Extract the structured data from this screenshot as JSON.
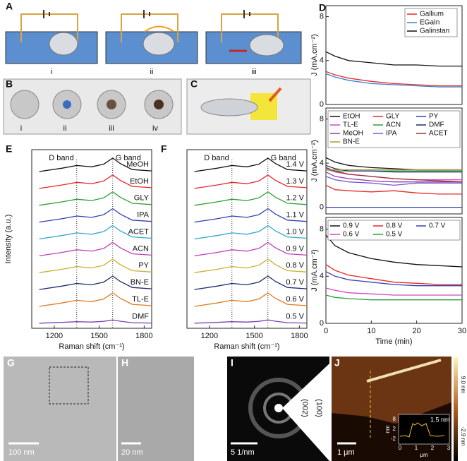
{
  "chart_data": [
    {
      "type": "line",
      "panel": "D",
      "ylabel": "J (mA.cm⁻²)",
      "xlim": [
        0,
        30
      ],
      "ylim": [
        0,
        9
      ],
      "yticks": [
        0,
        4,
        8
      ],
      "x": [
        0,
        2,
        5,
        10,
        15,
        20,
        25,
        30
      ],
      "legend": "upper right",
      "legend_columns": 1,
      "series": [
        {
          "name": "Gallium",
          "color": "#e8262a",
          "values": [
            3.0,
            2.7,
            2.4,
            2.1,
            1.9,
            1.8,
            1.7,
            1.7
          ]
        },
        {
          "name": "EGaIn",
          "color": "#3a7fc9",
          "values": [
            2.8,
            2.5,
            2.2,
            1.9,
            1.8,
            1.7,
            1.6,
            1.6
          ]
        },
        {
          "name": "Galinstan",
          "color": "#111111",
          "values": [
            4.8,
            4.4,
            4.0,
            3.8,
            3.6,
            3.6,
            3.5,
            3.5
          ]
        }
      ]
    },
    {
      "type": "line",
      "ylabel": "J (mA.cm⁻²)",
      "xlim": [
        0,
        30
      ],
      "ylim": [
        -0.6,
        9
      ],
      "yticks": [
        0,
        4,
        8
      ],
      "x": [
        0,
        2,
        5,
        10,
        15,
        20,
        25,
        30
      ],
      "legend": "upper",
      "legend_columns": 3,
      "series": [
        {
          "name": "EtOH",
          "color": "#111111",
          "values": [
            4.5,
            4.1,
            3.8,
            3.6,
            3.5,
            3.4,
            3.4,
            3.4
          ]
        },
        {
          "name": "GLY",
          "color": "#e8262a",
          "values": [
            2.0,
            1.6,
            1.5,
            1.4,
            1.5,
            1.3,
            1.2,
            1.2
          ]
        },
        {
          "name": "PY",
          "color": "#3340b0",
          "values": [
            0,
            0,
            0,
            0,
            0,
            0,
            0,
            0
          ]
        },
        {
          "name": "TL-E",
          "color": "#d046c8",
          "values": [
            3.5,
            3.2,
            3.0,
            2.8,
            2.6,
            2.5,
            2.5,
            2.5
          ]
        },
        {
          "name": "ACN",
          "color": "#2f9e3a",
          "values": [
            3.4,
            3.3,
            3.3,
            3.3,
            3.3,
            3.3,
            3.3,
            3.3
          ]
        },
        {
          "name": "DMF",
          "color": "#1b2a6b",
          "values": [
            3.8,
            3.5,
            3.3,
            3.3,
            3.2,
            3.2,
            3.2,
            3.2
          ]
        },
        {
          "name": "MeOH",
          "color": "#8a3fa8",
          "values": [
            3.2,
            2.8,
            2.6,
            2.4,
            2.3,
            2.3,
            2.3,
            2.3
          ]
        },
        {
          "name": "IPA",
          "color": "#7b57d6",
          "values": [
            2.8,
            2.5,
            2.3,
            2.2,
            2.0,
            2.2,
            2.2,
            2.2
          ]
        },
        {
          "name": "ACET",
          "color": "#9b2d2d",
          "values": [
            3.6,
            3.3,
            3.0,
            2.8,
            2.6,
            2.5,
            2.4,
            2.3
          ]
        },
        {
          "name": "BN-E",
          "color": "#a89a35",
          "values": [
            3.4,
            3.4,
            3.4,
            3.4,
            3.4,
            3.4,
            3.4,
            3.4
          ]
        }
      ]
    },
    {
      "type": "line",
      "ylabel": "J (mA.cm⁻²)",
      "xlabel": "Time (min)",
      "xlim": [
        0,
        30
      ],
      "ylim": [
        0,
        9
      ],
      "yticks": [
        0,
        4,
        8
      ],
      "xticks": [
        0,
        10,
        20,
        30
      ],
      "x": [
        0,
        2,
        5,
        10,
        15,
        20,
        25,
        30
      ],
      "legend": "upper",
      "legend_columns": 3,
      "series": [
        {
          "name": "0.9 V",
          "color": "#111111",
          "values": [
            7.5,
            6.6,
            6.0,
            5.5,
            5.2,
            5.0,
            4.9,
            4.8
          ]
        },
        {
          "name": "0.8 V",
          "color": "#e8262a",
          "values": [
            5.0,
            4.5,
            4.1,
            3.8,
            3.5,
            3.4,
            3.3,
            3.3
          ]
        },
        {
          "name": "0.7 V",
          "color": "#3340b0",
          "values": [
            4.4,
            4.0,
            3.7,
            3.5,
            3.3,
            3.2,
            3.2,
            3.2
          ]
        },
        {
          "name": "0.6 V",
          "color": "#d046c8",
          "values": [
            3.0,
            2.8,
            2.6,
            2.5,
            2.4,
            2.4,
            2.4,
            2.4
          ]
        },
        {
          "name": "0.5 V",
          "color": "#2f9e3a",
          "values": [
            2.4,
            2.2,
            2.1,
            2.0,
            2.0,
            2.0,
            2.0,
            2.0
          ]
        }
      ]
    },
    {
      "type": "spectra",
      "panel": "E",
      "xlabel": "Raman shift (cm⁻¹)",
      "ylabel": "Intensity (a.u.)",
      "xlim": [
        1050,
        1850
      ],
      "ylim": [
        -0.3,
        10.3
      ],
      "xticks": [
        1200,
        1500,
        1800
      ],
      "x": [
        1100,
        1250,
        1350,
        1450,
        1530,
        1590,
        1640,
        1720,
        1850
      ],
      "annotations": [
        {
          "text": "D band",
          "x": 1350
        },
        {
          "text": "G band",
          "x": 1590
        }
      ],
      "series": [
        {
          "name": "MeOH",
          "color": "#111111",
          "values": [
            9,
            9.2,
            9.36,
            9.28,
            9.44,
            9.8,
            9.48,
            9.12,
            9.04
          ]
        },
        {
          "name": "EtOH",
          "color": "#e8262a",
          "values": [
            8,
            8.2,
            8.36,
            8.28,
            8.44,
            8.8,
            8.48,
            8.12,
            8.04
          ]
        },
        {
          "name": "GLY",
          "color": "#2f9e3a",
          "values": [
            7,
            7.2,
            7.36,
            7.28,
            7.44,
            7.8,
            7.48,
            7.12,
            7.04
          ]
        },
        {
          "name": "IPA",
          "color": "#3340b0",
          "values": [
            6,
            6.2,
            6.36,
            6.28,
            6.44,
            6.8,
            6.48,
            6.12,
            6.04
          ]
        },
        {
          "name": "ACET",
          "color": "#30a8c8",
          "values": [
            5,
            5.2,
            5.36,
            5.28,
            5.44,
            5.8,
            5.48,
            5.12,
            5.04
          ]
        },
        {
          "name": "ACN",
          "color": "#c040b8",
          "values": [
            4,
            4.2,
            4.36,
            4.28,
            4.44,
            4.8,
            4.48,
            4.12,
            4.04
          ]
        },
        {
          "name": "PY",
          "color": "#c9b130",
          "values": [
            3,
            3.2,
            3.36,
            3.28,
            3.44,
            3.8,
            3.48,
            3.12,
            3.04
          ]
        },
        {
          "name": "BN-E",
          "color": "#1b2a6b",
          "values": [
            2,
            2.2,
            2.36,
            2.28,
            2.44,
            2.8,
            2.48,
            2.12,
            2.04
          ]
        },
        {
          "name": "TL-E",
          "color": "#e07a20",
          "values": [
            1,
            1.2,
            1.36,
            1.28,
            1.44,
            1.8,
            1.48,
            1.12,
            1.04
          ]
        },
        {
          "name": "DMF",
          "color": "#7b3fb0",
          "values": [
            0,
            0.05,
            0.09,
            0.07,
            0.11,
            0.2,
            0.12,
            0.03,
            0.01
          ]
        }
      ]
    },
    {
      "type": "spectra",
      "panel": "F",
      "xlabel": "Raman shift (cm⁻¹)",
      "xlim": [
        1050,
        1850
      ],
      "ylim": [
        -0.3,
        10.3
      ],
      "xticks": [
        1200,
        1500,
        1800
      ],
      "x": [
        1100,
        1250,
        1350,
        1450,
        1530,
        1590,
        1640,
        1720,
        1850
      ],
      "annotations": [
        {
          "text": "D band",
          "x": 1350
        },
        {
          "text": "G band",
          "x": 1590
        }
      ],
      "series": [
        {
          "name": "1.4 V",
          "color": "#111111",
          "values": [
            9,
            9.2,
            9.36,
            9.28,
            9.44,
            9.8,
            9.48,
            9.12,
            9.04
          ]
        },
        {
          "name": "1.3 V",
          "color": "#e8262a",
          "values": [
            8,
            8.2,
            8.36,
            8.28,
            8.44,
            8.8,
            8.48,
            8.12,
            8.04
          ]
        },
        {
          "name": "1.2 V",
          "color": "#2f9e3a",
          "values": [
            7,
            7.2,
            7.36,
            7.28,
            7.44,
            7.8,
            7.48,
            7.12,
            7.04
          ]
        },
        {
          "name": "1.1 V",
          "color": "#3340b0",
          "values": [
            6,
            6.2,
            6.36,
            6.28,
            6.44,
            6.8,
            6.48,
            6.12,
            6.04
          ]
        },
        {
          "name": "1.0 V",
          "color": "#30a8c8",
          "values": [
            5,
            5.2,
            5.36,
            5.28,
            5.44,
            5.8,
            5.48,
            5.12,
            5.04
          ]
        },
        {
          "name": "0.9 V",
          "color": "#c040b8",
          "values": [
            4,
            4.2,
            4.36,
            4.28,
            4.44,
            4.8,
            4.48,
            4.12,
            4.04
          ]
        },
        {
          "name": "0.8 V",
          "color": "#c9b130",
          "values": [
            3,
            3.2,
            3.36,
            3.28,
            3.44,
            3.8,
            3.48,
            3.12,
            3.04
          ]
        },
        {
          "name": "0.7 V",
          "color": "#1b2a6b",
          "values": [
            2,
            2.2,
            2.36,
            2.28,
            2.44,
            2.8,
            2.48,
            2.12,
            2.04
          ]
        },
        {
          "name": "0.6 V",
          "color": "#e07a20",
          "values": [
            1,
            1.2,
            1.36,
            1.28,
            1.44,
            1.8,
            1.48,
            1.12,
            1.04
          ]
        },
        {
          "name": "0.5 V",
          "color": "#7b3fb0",
          "values": [
            0,
            0.05,
            0.09,
            0.07,
            0.11,
            0.2,
            0.12,
            0.03,
            0.01
          ]
        }
      ]
    }
  ],
  "figure": {
    "A": {
      "label": "A",
      "steps": [
        "i",
        "ii",
        "iii"
      ]
    },
    "B": {
      "label": "B",
      "steps": [
        "i",
        "ii",
        "iii",
        "iv"
      ]
    },
    "C": {
      "label": "C"
    },
    "G": {
      "label": "G",
      "scale": "100 nm"
    },
    "H": {
      "label": "H",
      "scale": "20 nm"
    },
    "I": {
      "label": "I",
      "scale": "5 1/nm",
      "rings": [
        "(002)",
        "(100)"
      ]
    },
    "J": {
      "label": "J",
      "scale": "1 μm",
      "colorbar": [
        "9.0 nm",
        "-2.9 nm"
      ],
      "inset": {
        "note": "1.5 nm",
        "ylabel": "nm",
        "xlabel": "μm",
        "yticks": [
          "8",
          "2",
          "-2"
        ],
        "xticks": [
          "0",
          "1",
          "2",
          "3"
        ]
      }
    }
  }
}
